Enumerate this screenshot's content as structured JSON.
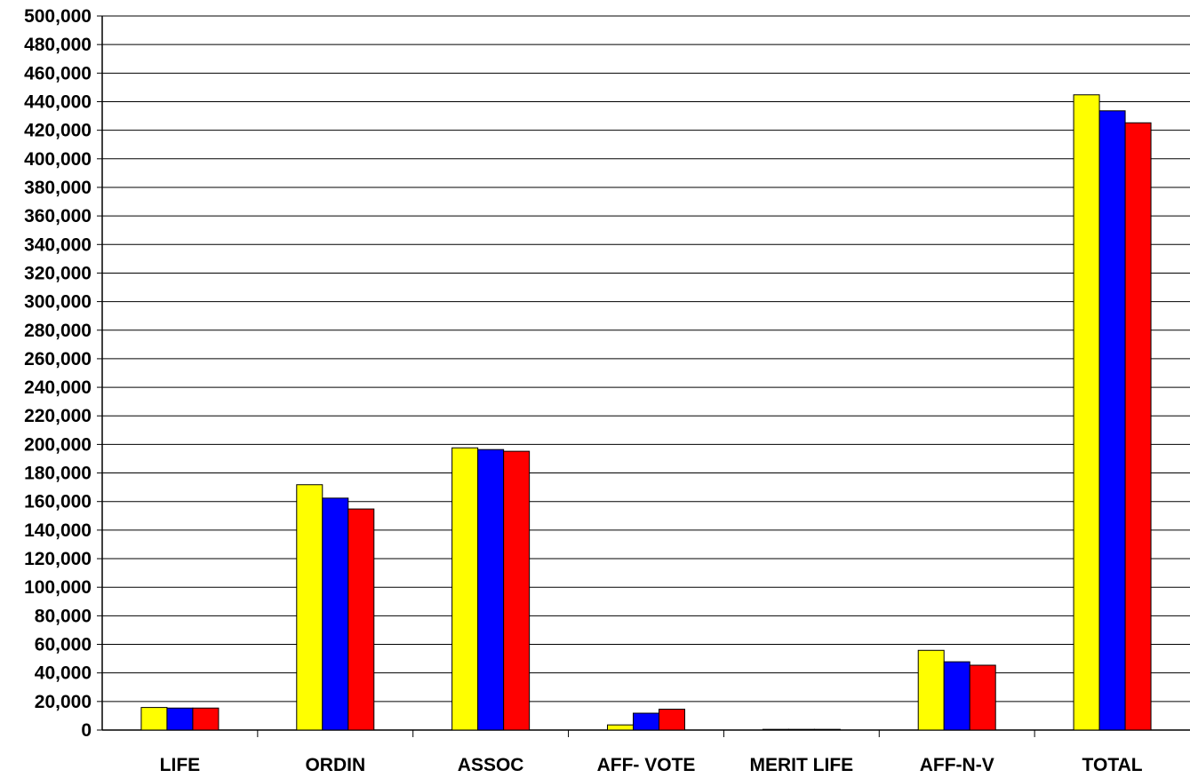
{
  "chart_data": {
    "type": "bar",
    "categories": [
      "LIFE",
      "ORDIN",
      "ASSOC",
      "AFF-  VOTE",
      "MERIT LIFE",
      "AFF-N-V",
      "TOTAL"
    ],
    "series": [
      {
        "color": "#ffff00",
        "values": [
          15800,
          171800,
          197600,
          3600,
          300,
          55800,
          444800
        ]
      },
      {
        "color": "#0000ff",
        "values": [
          15400,
          162400,
          196400,
          11800,
          200,
          47800,
          433600
        ]
      },
      {
        "color": "#ff0000",
        "values": [
          15400,
          154800,
          195200,
          14600,
          200,
          45400,
          425200
        ]
      }
    ],
    "yticks": [
      "0",
      "20,000",
      "40,000",
      "60,000",
      "80,000",
      "100,000",
      "120,000",
      "140,000",
      "160,000",
      "180,000",
      "200,000",
      "220,000",
      "240,000",
      "260,000",
      "280,000",
      "300,000",
      "320,000",
      "340,000",
      "360,000",
      "380,000",
      "400,000",
      "420,000",
      "440,000",
      "460,000",
      "480,000",
      "500,000"
    ],
    "ylim": [
      0,
      500000
    ],
    "ystep": 20000,
    "grid": true,
    "legend": "none"
  }
}
